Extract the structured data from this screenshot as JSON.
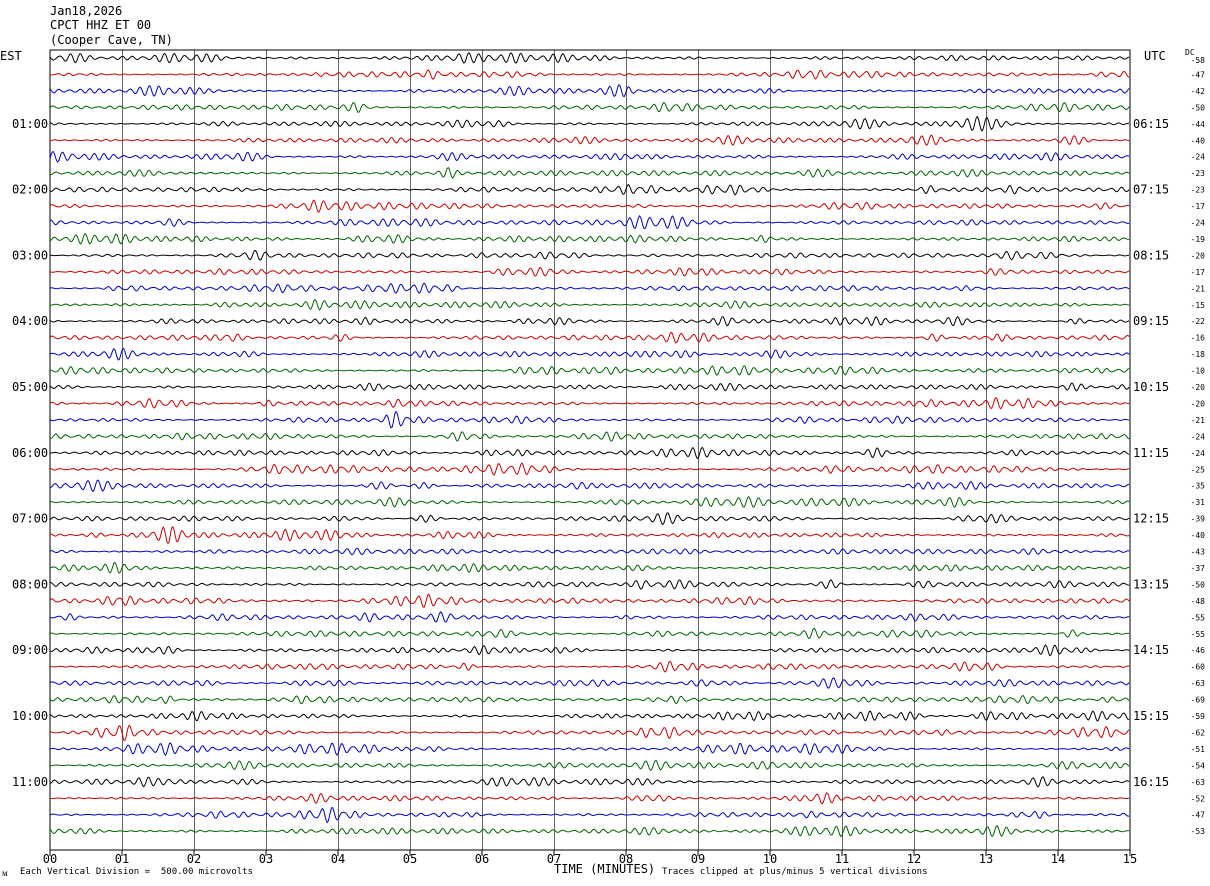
{
  "header": {
    "date": "Jan18,2026",
    "station": "CPCT HHZ ET 00",
    "location": "(Cooper Cave, TN)"
  },
  "left_zone": "EST",
  "right_zone": "UTC",
  "dc_label": "DC",
  "footer": {
    "vertical_division": "Each Vertical Division =  500.00 microvolts",
    "clip_note": "Traces clipped at plus/minus 5 vertical divisions",
    "mark": "ᴍ"
  },
  "chart_data": {
    "type": "line",
    "xlabel": "TIME (MINUTES)",
    "x_ticks": [
      "00",
      "01",
      "02",
      "03",
      "04",
      "05",
      "06",
      "07",
      "08",
      "09",
      "10",
      "11",
      "12",
      "13",
      "14",
      "15"
    ],
    "xlim": [
      0,
      15
    ],
    "trace_colors": [
      "#000000",
      "#cc0000",
      "#0000cc",
      "#006400"
    ],
    "hour_labels_left": [
      "01:00",
      "02:00",
      "03:00",
      "04:00",
      "05:00",
      "06:00",
      "07:00",
      "08:00",
      "09:00",
      "10:00",
      "11:00"
    ],
    "hour_labels_right": [
      "06:15",
      "07:15",
      "08:15",
      "09:15",
      "10:15",
      "11:15",
      "12:15",
      "13:15",
      "14:15",
      "15:15",
      "16:15"
    ],
    "dc_offsets": [
      -58,
      -47,
      -42,
      -50,
      -44,
      -40,
      -24,
      -23,
      -23,
      -17,
      -24,
      -19,
      -20,
      -17,
      -21,
      -15,
      -22,
      -16,
      -18,
      -10,
      -20,
      -20,
      -21,
      -24,
      -24,
      -25,
      -35,
      -31,
      -39,
      -40,
      -43,
      -37,
      -50,
      -48,
      -55,
      -55,
      -46,
      -60,
      -63,
      -69,
      -59,
      -62,
      -51,
      -54,
      -63,
      -52,
      -47,
      -53
    ]
  }
}
